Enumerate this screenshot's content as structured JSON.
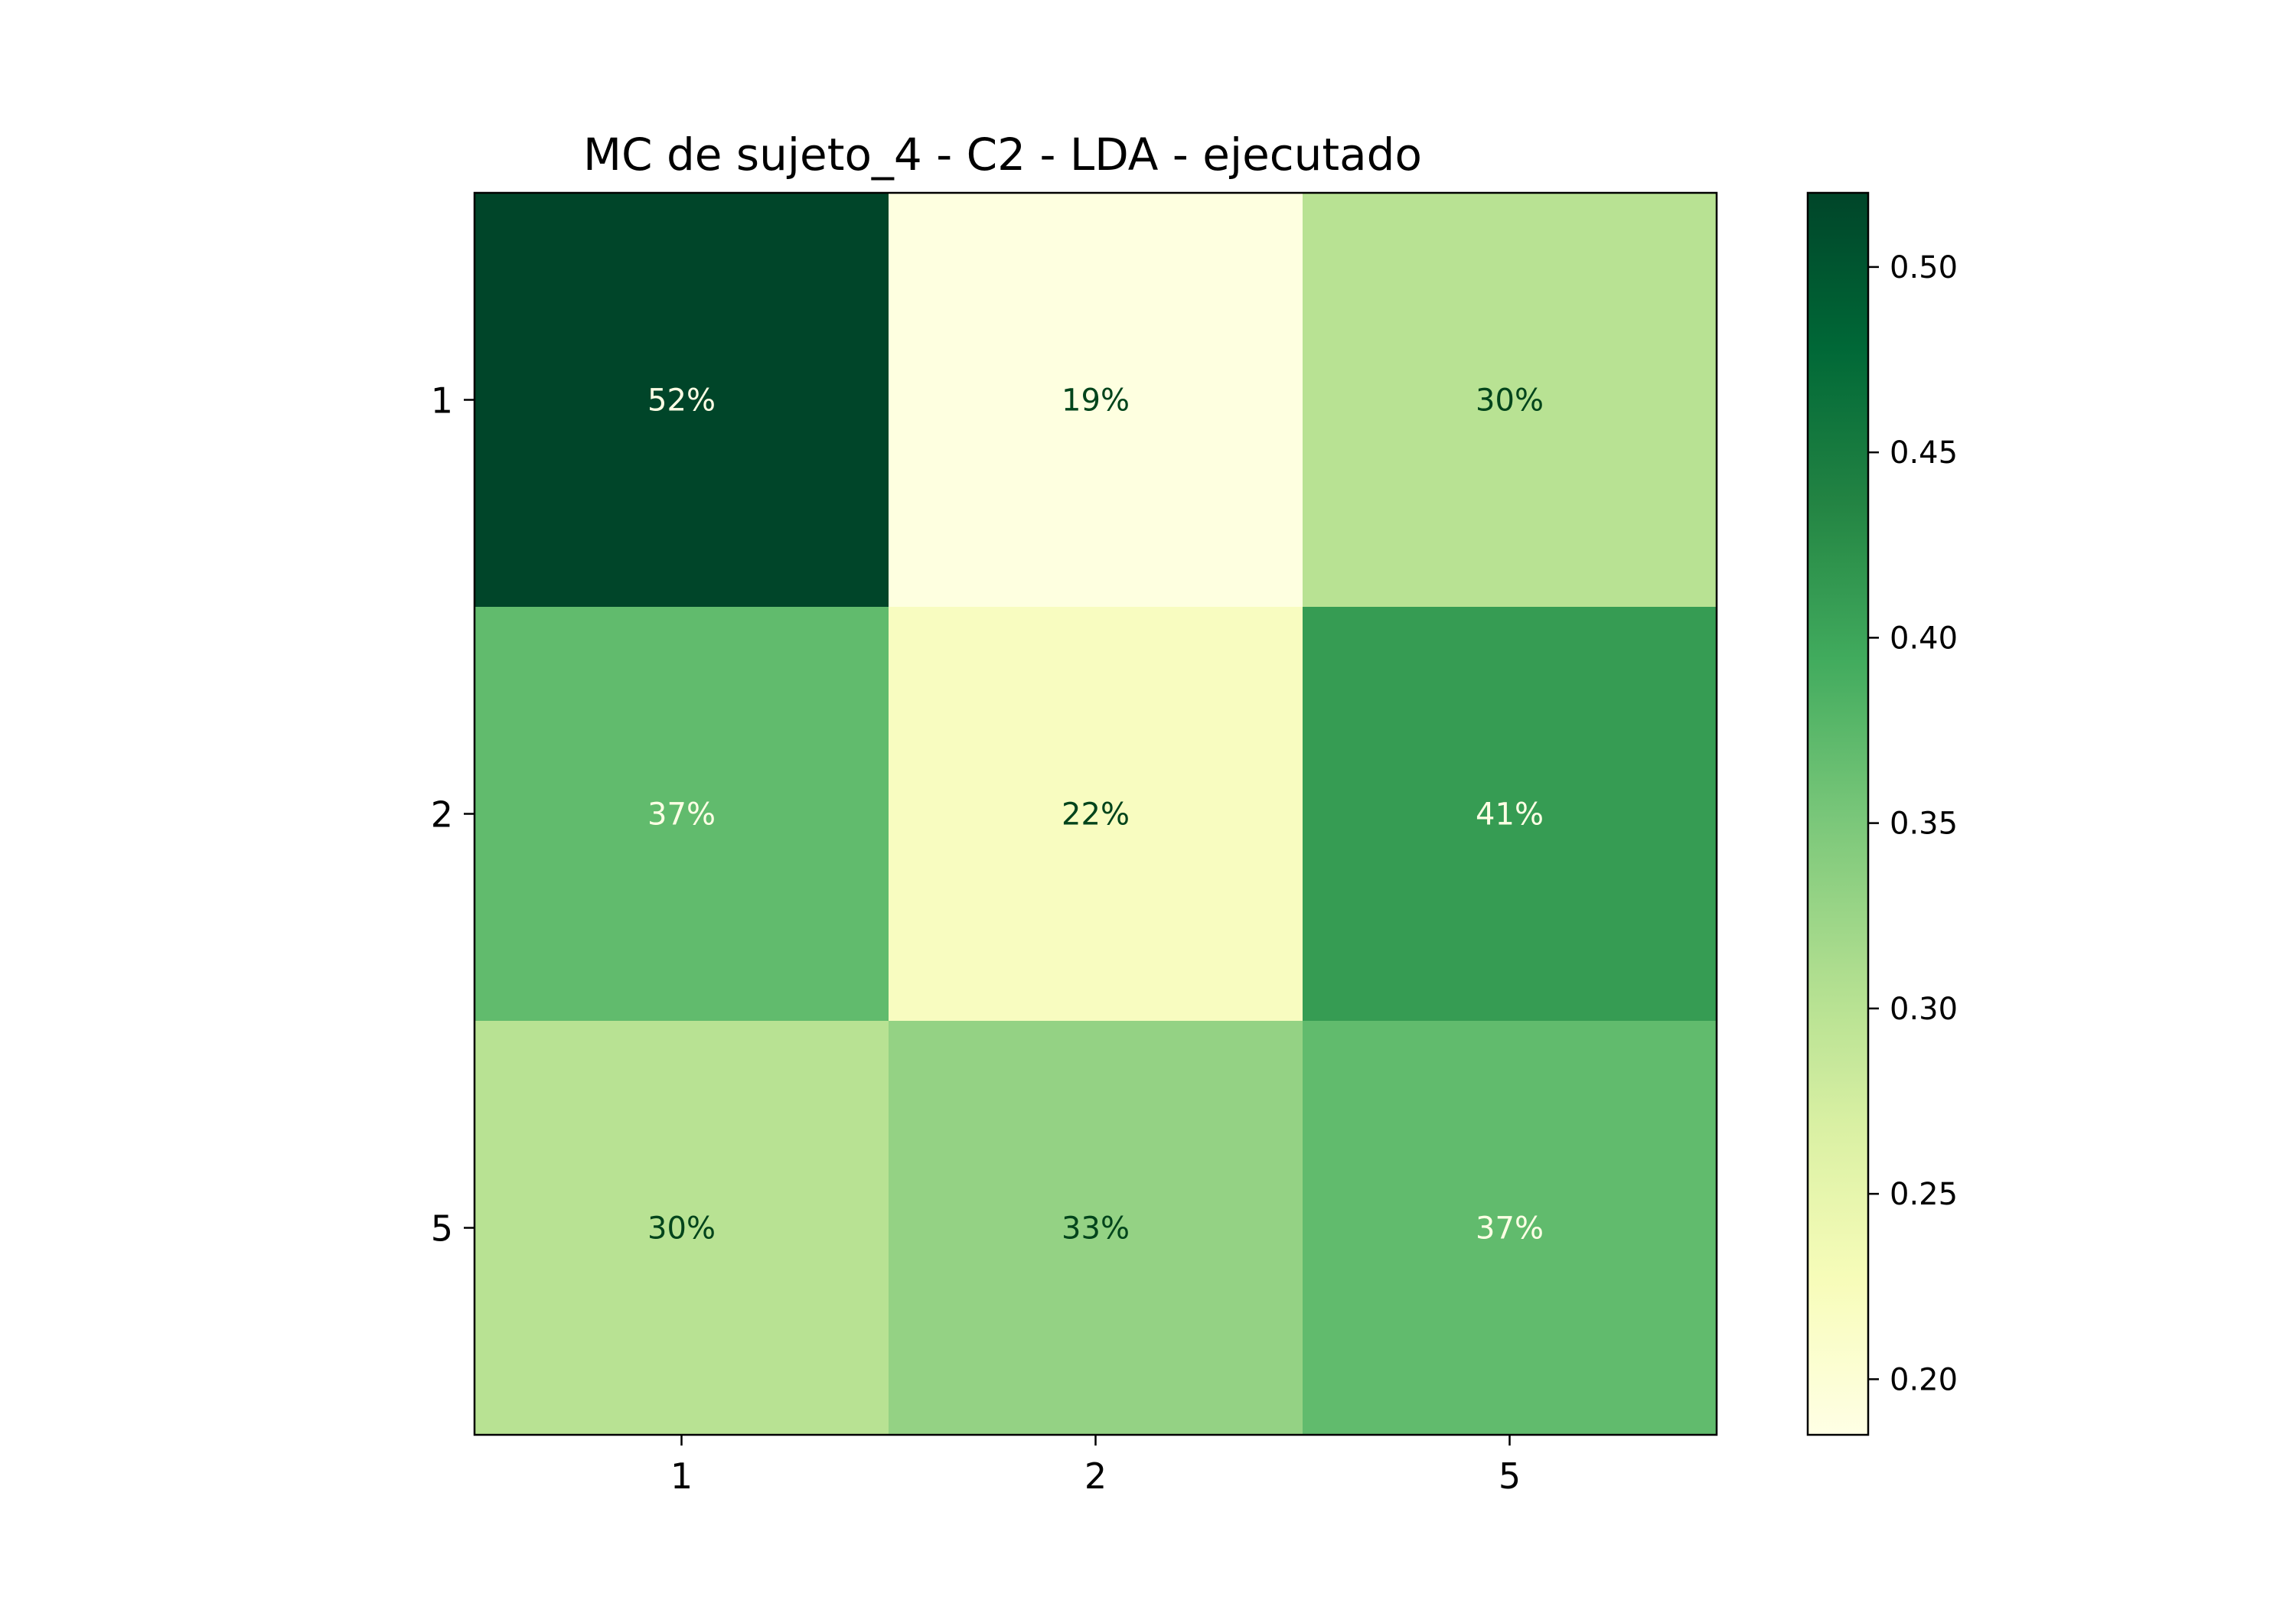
{
  "chart_data": {
    "type": "heatmap",
    "title": "MC de sujeto_4 - C2 - LDA - ejecutado",
    "xlabel": "",
    "ylabel": "",
    "x_categories": [
      "1",
      "2",
      "5"
    ],
    "y_categories": [
      "1",
      "2",
      "5"
    ],
    "values": [
      [
        0.52,
        0.19,
        0.3
      ],
      [
        0.37,
        0.22,
        0.41
      ],
      [
        0.3,
        0.33,
        0.37
      ]
    ],
    "cell_labels": [
      [
        "52%",
        "19%",
        "30%"
      ],
      [
        "37%",
        "22%",
        "41%"
      ],
      [
        "30%",
        "33%",
        "37%"
      ]
    ],
    "colormap": "YlGn",
    "colorbar": {
      "range": [
        0.185,
        0.52
      ],
      "ticks": [
        0.2,
        0.25,
        0.3,
        0.35,
        0.4,
        0.45,
        0.5
      ],
      "tick_labels": [
        "0.20",
        "0.25",
        "0.30",
        "0.35",
        "0.40",
        "0.45",
        "0.50"
      ]
    },
    "colors": {
      "scale": [
        "#ffffe5",
        "#f7fcb9",
        "#d9f0a3",
        "#addd8e",
        "#78c679",
        "#41ab5d",
        "#238443",
        "#006837",
        "#004529"
      ],
      "text_dark": "#00441b",
      "text_light": "#ffffe5"
    },
    "grid": false,
    "legend": "colorbar-right"
  }
}
